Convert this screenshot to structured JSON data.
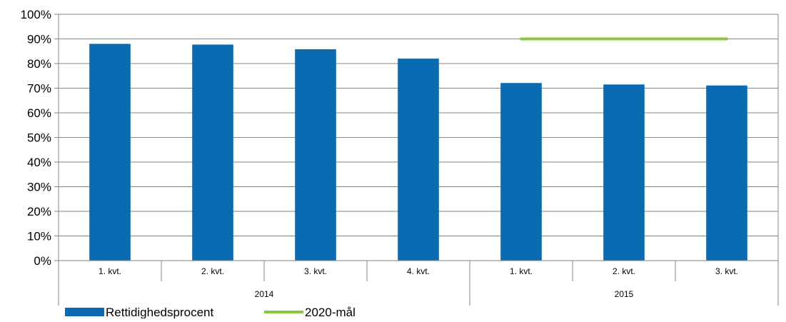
{
  "chart_data": {
    "type": "bar",
    "title": "",
    "xlabel": "",
    "ylabel": "",
    "ylim": [
      0,
      1
    ],
    "yticks": [
      "0%",
      "10%",
      "20%",
      "30%",
      "40%",
      "50%",
      "60%",
      "70%",
      "80%",
      "90%",
      "100%"
    ],
    "grid": true,
    "legend_position": "bottom-left",
    "categories": [
      "1. kvt.",
      "2. kvt.",
      "3. kvt.",
      "4. kvt.",
      "1. kvt.",
      "2. kvt.",
      "3. kvt."
    ],
    "groups": [
      {
        "label": "2014",
        "count": 4
      },
      {
        "label": "2015",
        "count": 3
      }
    ],
    "series": [
      {
        "name": "Rettidighedsprocent",
        "type": "bar",
        "color": "#0A6BB3",
        "values": [
          0.88,
          0.877,
          0.858,
          0.82,
          0.721,
          0.715,
          0.711
        ]
      },
      {
        "name": "2020-mål",
        "type": "line",
        "color": "#8CC63F",
        "values": [
          null,
          null,
          null,
          null,
          0.9,
          0.9,
          0.9
        ]
      }
    ]
  }
}
